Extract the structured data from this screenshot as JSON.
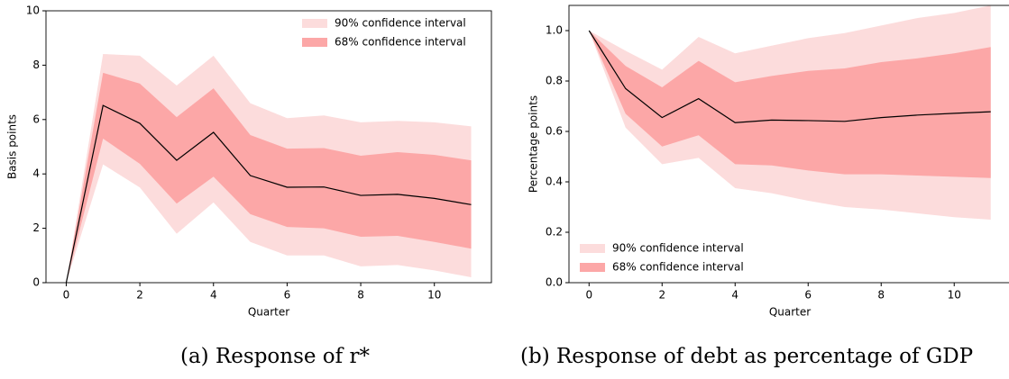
{
  "chart_data": [
    {
      "type": "line",
      "title": "(a) Response of r*",
      "xlabel": "Quarter",
      "ylabel": "Basis points",
      "x": [
        0,
        1,
        2,
        3,
        4,
        5,
        6,
        7,
        8,
        9,
        10,
        11
      ],
      "values": [
        0,
        6.52,
        5.86,
        4.5,
        5.53,
        3.94,
        3.51,
        3.52,
        3.21,
        3.25,
        3.1,
        2.87
      ],
      "color": "#000000",
      "bands": [
        {
          "name": "90% confidence interval",
          "color": "#fcdcdc",
          "upper": [
            0,
            8.41,
            8.35,
            7.25,
            8.35,
            6.6,
            6.05,
            6.15,
            5.9,
            5.95,
            5.9,
            5.75
          ],
          "lower": [
            0,
            4.35,
            3.5,
            1.8,
            2.95,
            1.5,
            1.0,
            1.0,
            0.6,
            0.65,
            0.45,
            0.2
          ]
        },
        {
          "name": "68% confidence interval",
          "color": "#fca7a7",
          "upper": [
            0,
            7.72,
            7.32,
            6.09,
            7.15,
            5.43,
            4.93,
            4.95,
            4.67,
            4.8,
            4.7,
            4.5
          ],
          "lower": [
            0,
            5.3,
            4.37,
            2.91,
            3.9,
            2.52,
            2.05,
            2.0,
            1.69,
            1.72,
            1.5,
            1.25
          ]
        }
      ],
      "xlim": [
        -0.55,
        11.55
      ],
      "xticks": [
        0,
        2,
        4,
        6,
        8,
        10
      ],
      "ylim": [
        0,
        10
      ],
      "yticks": [
        0,
        2,
        4,
        6,
        8,
        10
      ],
      "legend": "upper right"
    },
    {
      "type": "line",
      "title": "(b) Response of debt as percentage of GDP",
      "xlabel": "Quarter",
      "ylabel": "Percentage points",
      "x": [
        0,
        1,
        2,
        3,
        4,
        5,
        6,
        7,
        8,
        9,
        10,
        11
      ],
      "values": [
        1.0,
        0.77,
        0.655,
        0.73,
        0.635,
        0.645,
        0.643,
        0.64,
        0.655,
        0.665,
        0.672,
        0.678
      ],
      "color": "#000000",
      "bands": [
        {
          "name": "90% confidence interval",
          "color": "#fcdcdc",
          "upper": [
            1.0,
            0.92,
            0.845,
            0.975,
            0.91,
            0.94,
            0.97,
            0.99,
            1.02,
            1.05,
            1.07,
            1.1
          ],
          "lower": [
            1.0,
            0.615,
            0.47,
            0.495,
            0.375,
            0.355,
            0.325,
            0.3,
            0.29,
            0.275,
            0.26,
            0.25
          ]
        },
        {
          "name": "68% confidence interval",
          "color": "#fca7a7",
          "upper": [
            1.0,
            0.86,
            0.775,
            0.88,
            0.795,
            0.82,
            0.84,
            0.85,
            0.875,
            0.89,
            0.91,
            0.935
          ],
          "lower": [
            1.0,
            0.67,
            0.54,
            0.585,
            0.47,
            0.465,
            0.445,
            0.43,
            0.43,
            0.425,
            0.42,
            0.415
          ]
        }
      ],
      "xlim": [
        -0.55,
        11.55
      ],
      "xticks": [
        0,
        2,
        4,
        6,
        8,
        10
      ],
      "ylim": [
        0,
        1.1
      ],
      "yticks": [
        {
          "value": 0,
          "label": "0.0"
        },
        0.2,
        0.4,
        0.6,
        0.8,
        {
          "value": 1.0,
          "label": "1.0"
        }
      ],
      "legend": "lower left"
    }
  ]
}
